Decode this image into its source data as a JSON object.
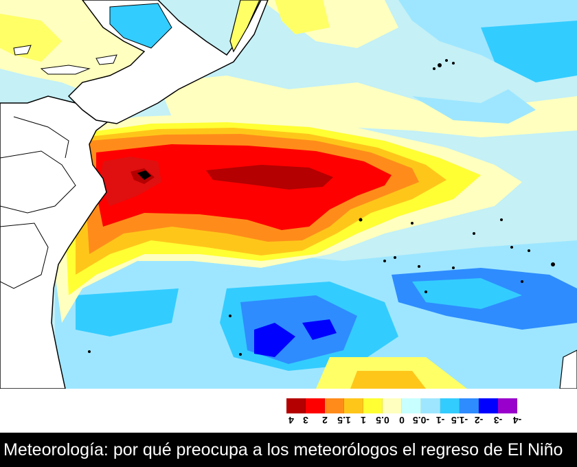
{
  "caption": "Meteorología: por qué preocupa a los meteorólogos el regreso de El Niño",
  "legend": {
    "ticks": [
      "4",
      "3",
      "2",
      "1.5",
      "1",
      "0.5",
      "0",
      "-0.5",
      "-1",
      "-1.5",
      "-2",
      "-3",
      "-4"
    ],
    "colors": [
      "#b40000",
      "#ff0000",
      "#ff8c1a",
      "#ffc61a",
      "#ffff33",
      "#ffffbf",
      "#c8ffff",
      "#9ee6ff",
      "#33ccff",
      "#2e8cff",
      "#0000ff",
      "#9900cc"
    ]
  },
  "map_colors": {
    "land": "#ffffff",
    "coast": "#000000",
    "ocean_base": "#c4f0f6"
  }
}
